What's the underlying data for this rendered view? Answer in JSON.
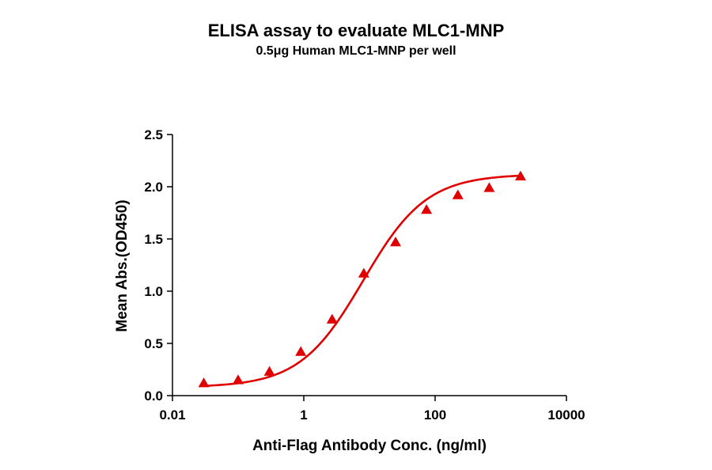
{
  "title": "ELISA assay to evaluate MLC1-MNP",
  "subtitle": "0.5μg Human MLC1-MNP per well",
  "chart_data": {
    "type": "scatter",
    "title": "ELISA assay to evaluate MLC1-MNP",
    "subtitle": "0.5μg Human MLC1-MNP per well",
    "xlabel": "Anti-Flag Antibody Conc. (ng/ml)",
    "ylabel": "Mean Abs.(OD450)",
    "x_scale": "log10",
    "xlim": [
      0.01,
      10000
    ],
    "ylim": [
      0,
      2.5
    ],
    "x_ticks": [
      0.01,
      1,
      100,
      10000
    ],
    "x_tick_labels": [
      "0.01",
      "1",
      "100",
      "10000"
    ],
    "y_ticks": [
      0.0,
      0.5,
      1.0,
      1.5,
      2.0,
      2.5
    ],
    "y_tick_labels": [
      "0.0",
      "0.5",
      "1.0",
      "1.5",
      "2.0",
      "2.5"
    ],
    "grid": false,
    "legend": "none",
    "series": [
      {
        "marker": "triangle",
        "color": "#e00000",
        "x": [
          0.03,
          0.1,
          0.3,
          0.9,
          2.7,
          8.2,
          25,
          74,
          222,
          667,
          2000
        ],
        "y": [
          0.12,
          0.15,
          0.23,
          0.42,
          0.73,
          1.17,
          1.47,
          1.78,
          1.92,
          1.99,
          2.1
        ]
      }
    ],
    "fit": {
      "model": "4PL",
      "color": "#e00000",
      "bottom": 0.08,
      "top": 2.12,
      "ec50": 8.0,
      "hill": 0.9
    }
  }
}
